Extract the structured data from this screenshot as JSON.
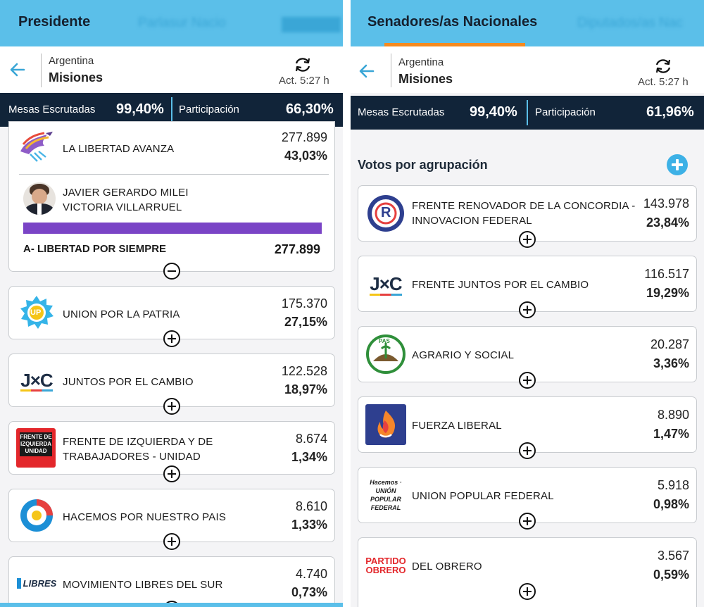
{
  "left": {
    "tab_active": "Presidente",
    "tab_blurred": "Parlasur Nacio",
    "location": {
      "country": "Argentina",
      "province": "Misiones"
    },
    "updated": "Act. 5:27 h",
    "stats": {
      "mesas_label": "Mesas Escrutadas",
      "mesas_value": "99,40%",
      "part_label": "Participación",
      "part_value": "66,30%"
    },
    "expanded": {
      "party": "LA LIBERTAD AVANZA",
      "votes": "277.899",
      "pct": "43,03%",
      "candidate_1": "JAVIER GERARDO MILEI",
      "candidate_2": "VICTORIA VILLARRUEL",
      "list_name": "A- LIBERTAD POR SIEMPRE",
      "list_votes": "277.899",
      "bar_color": "#7a44c6"
    },
    "parties": [
      {
        "name": "UNION POR LA PATRIA",
        "votes": "175.370",
        "pct": "27,15%",
        "logo_text": "UP"
      },
      {
        "name": "JUNTOS POR EL CAMBIO",
        "votes": "122.528",
        "pct": "18,97%",
        "logo_text": "J×C"
      },
      {
        "name": "FRENTE DE IZQUIERDA Y DE TRABAJADORES - UNIDAD",
        "votes": "8.674",
        "pct": "1,34%",
        "logo_text": "FRENTE DE IZQUIERDA UNIDAD"
      },
      {
        "name": "HACEMOS POR NUESTRO PAIS",
        "votes": "8.610",
        "pct": "1,33%",
        "logo_text": ""
      },
      {
        "name": "MOVIMIENTO LIBRES DEL SUR",
        "votes": "4.740",
        "pct": "0,73%",
        "logo_text": "LIBRES"
      }
    ]
  },
  "right": {
    "tab_active": "Senadores/as Nacionales",
    "tab_blurred": "Diputados/as Nac",
    "location": {
      "country": "Argentina",
      "province": "Misiones"
    },
    "updated": "Act. 5:27 h",
    "stats": {
      "mesas_label": "Mesas Escrutadas",
      "mesas_value": "99,40%",
      "part_label": "Participación",
      "part_value": "61,96%"
    },
    "section_title": "Votos por agrupación",
    "parties": [
      {
        "name": "FRENTE RENOVADOR DE LA CONCORDIA - INNOVACION FEDERAL",
        "votes": "143.978",
        "pct": "23,84%",
        "logo_text": "R"
      },
      {
        "name": "FRENTE JUNTOS POR EL CAMBIO",
        "votes": "116.517",
        "pct": "19,29%",
        "logo_text": "J×C"
      },
      {
        "name": "AGRARIO Y SOCIAL",
        "votes": "20.287",
        "pct": "3,36%",
        "logo_text": "PAS"
      },
      {
        "name": "FUERZA LIBERAL",
        "votes": "8.890",
        "pct": "1,47%",
        "logo_text": ""
      },
      {
        "name": "UNION POPULAR FEDERAL",
        "votes": "5.918",
        "pct": "0,98%",
        "logo_text": "Hacemos · UNIÓN POPULAR FEDERAL"
      },
      {
        "name": "DEL OBRERO",
        "votes": "3.567",
        "pct": "0,59%",
        "logo_text": "PARTIDO OBRERO"
      }
    ]
  }
}
